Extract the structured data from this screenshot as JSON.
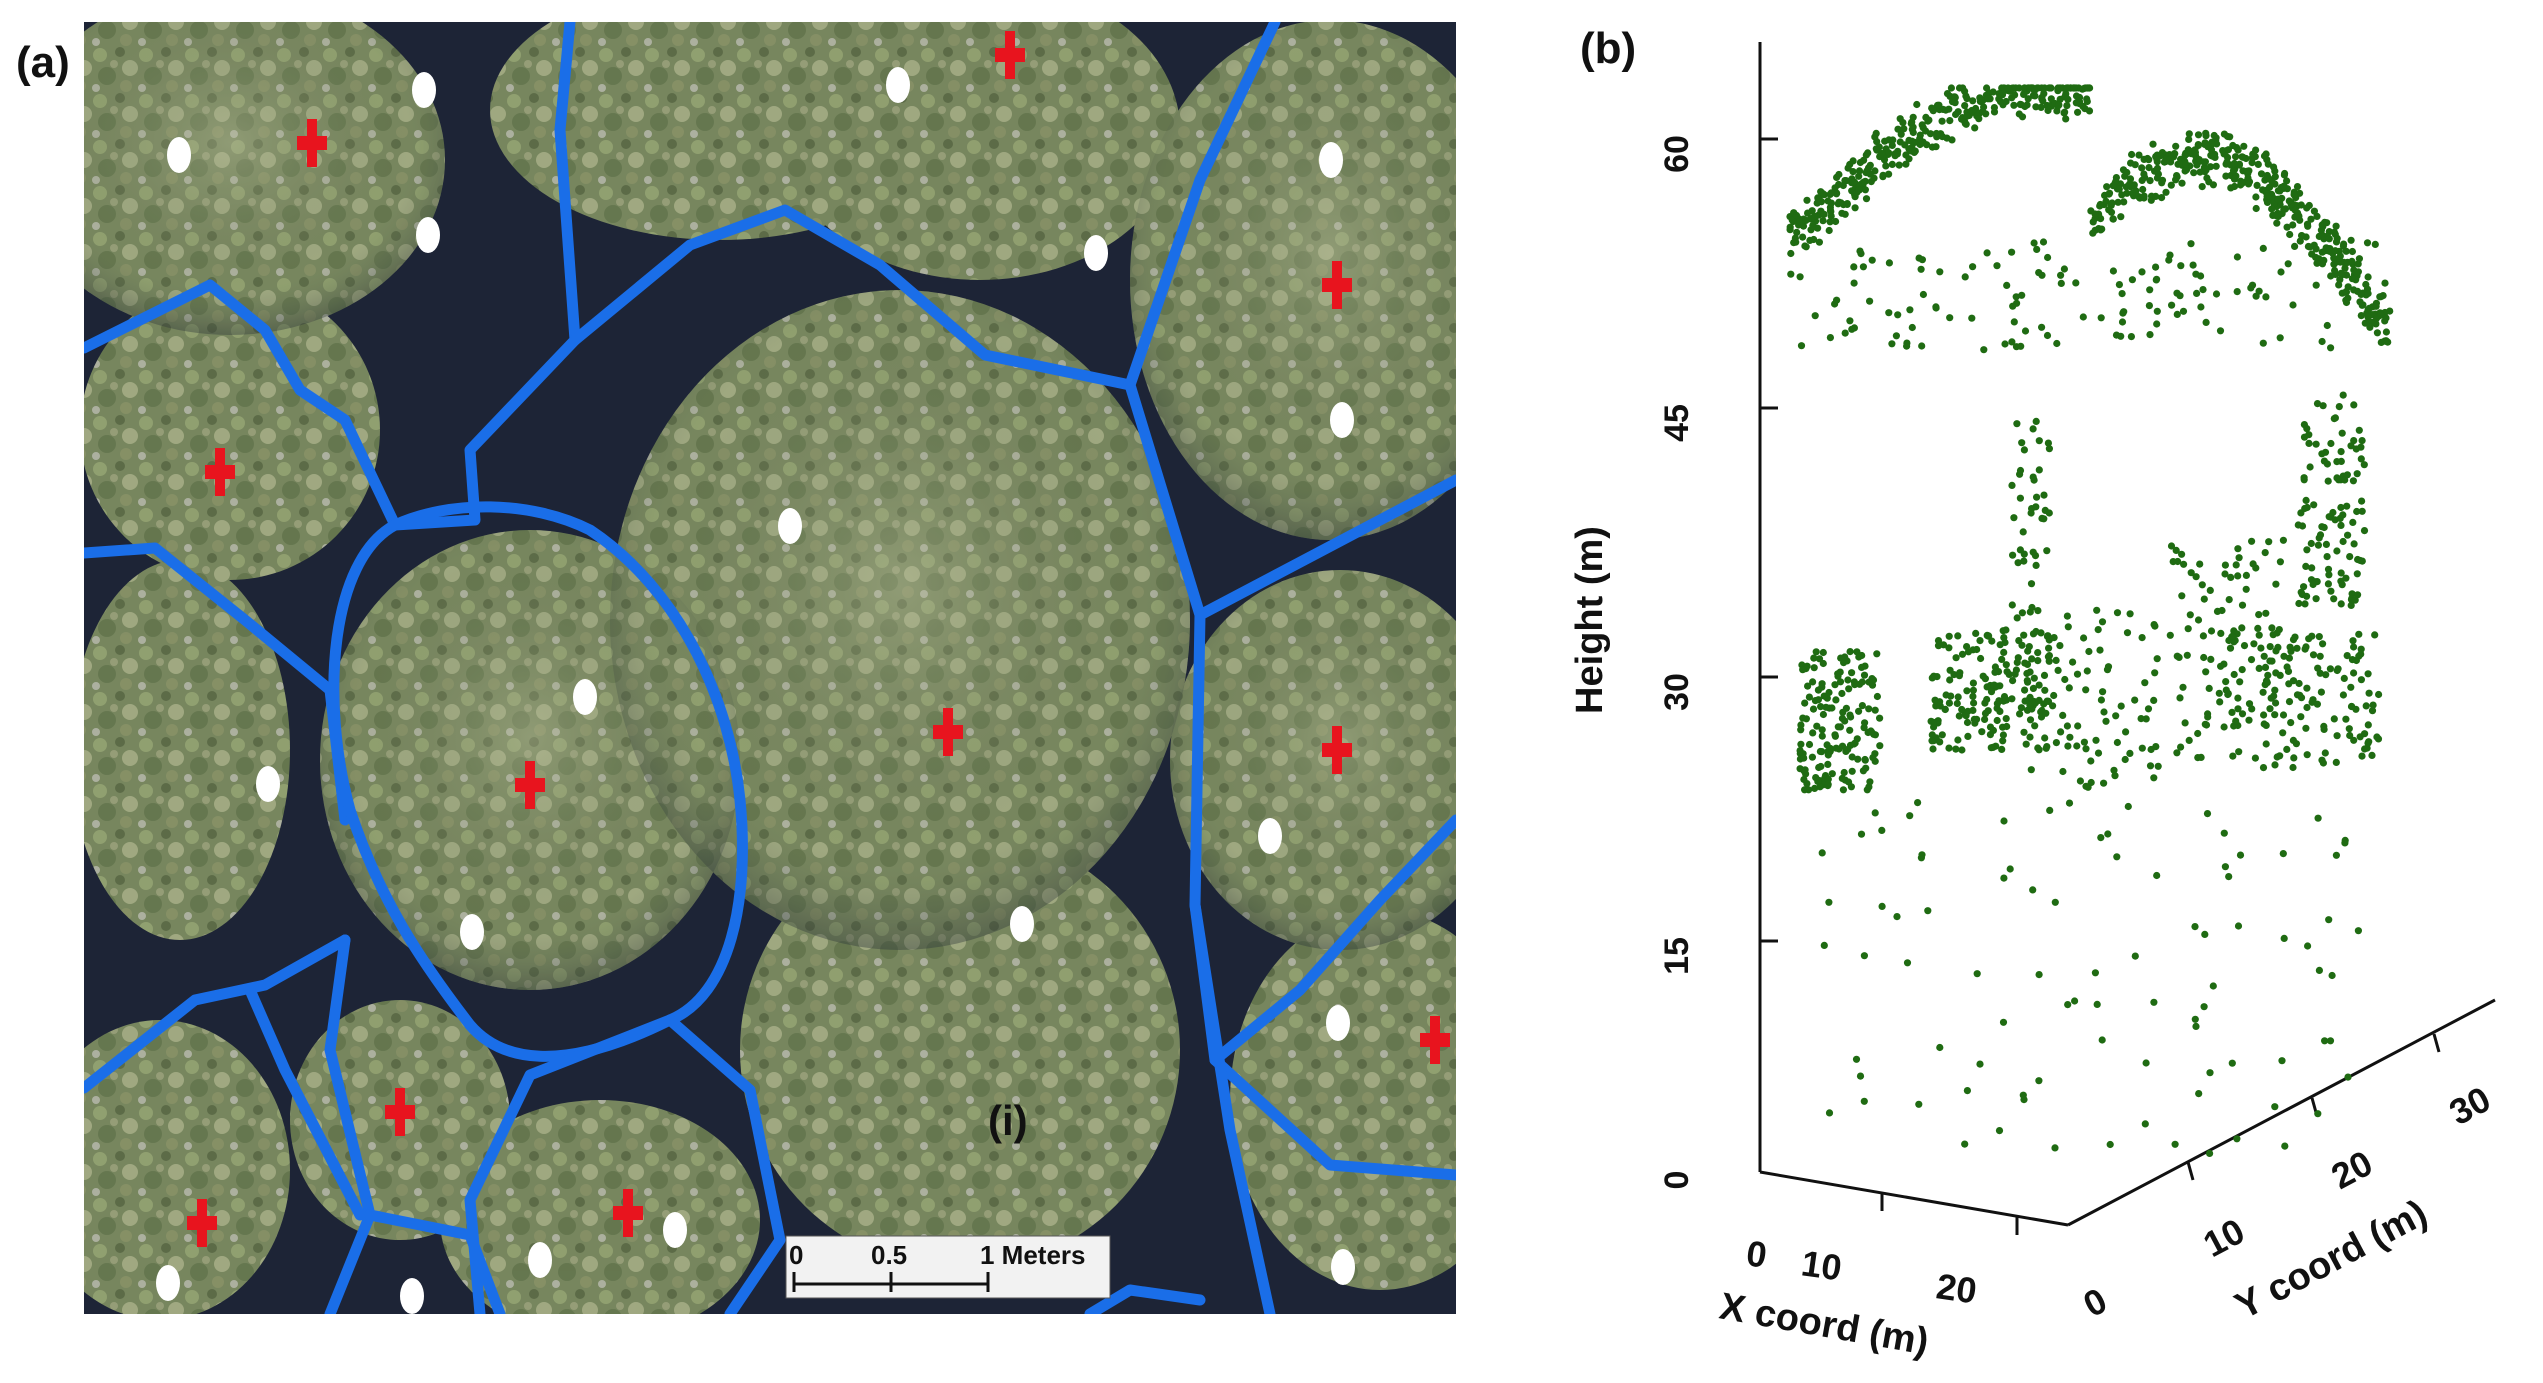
{
  "panel_a": {
    "label": "(a)",
    "annotation": "(i)",
    "scale_bar": {
      "ticks": [
        "0",
        "0.5",
        "1 Meters"
      ]
    },
    "colors": {
      "crown_boundary": "#1a6ee8",
      "treetop_marker": "#e8141e",
      "stem_marker": "#ffffff",
      "canopy": "#6f7f5a",
      "gap": "#1c2233"
    },
    "marker_icons": [
      "red-cross-marker",
      "white-dot-marker"
    ]
  },
  "panel_b": {
    "label": "(b)",
    "z_axis_label": "Height (m)",
    "x_axis_label": "X coord (m)",
    "y_axis_label": "Y coord (m)",
    "z_ticks": [
      "0",
      "15",
      "30",
      "45",
      "60"
    ],
    "x_ticks": [
      "0",
      "10",
      "20"
    ],
    "y_ticks": [
      "0",
      "10",
      "20",
      "30"
    ],
    "point_color": "#1f6b12"
  }
}
